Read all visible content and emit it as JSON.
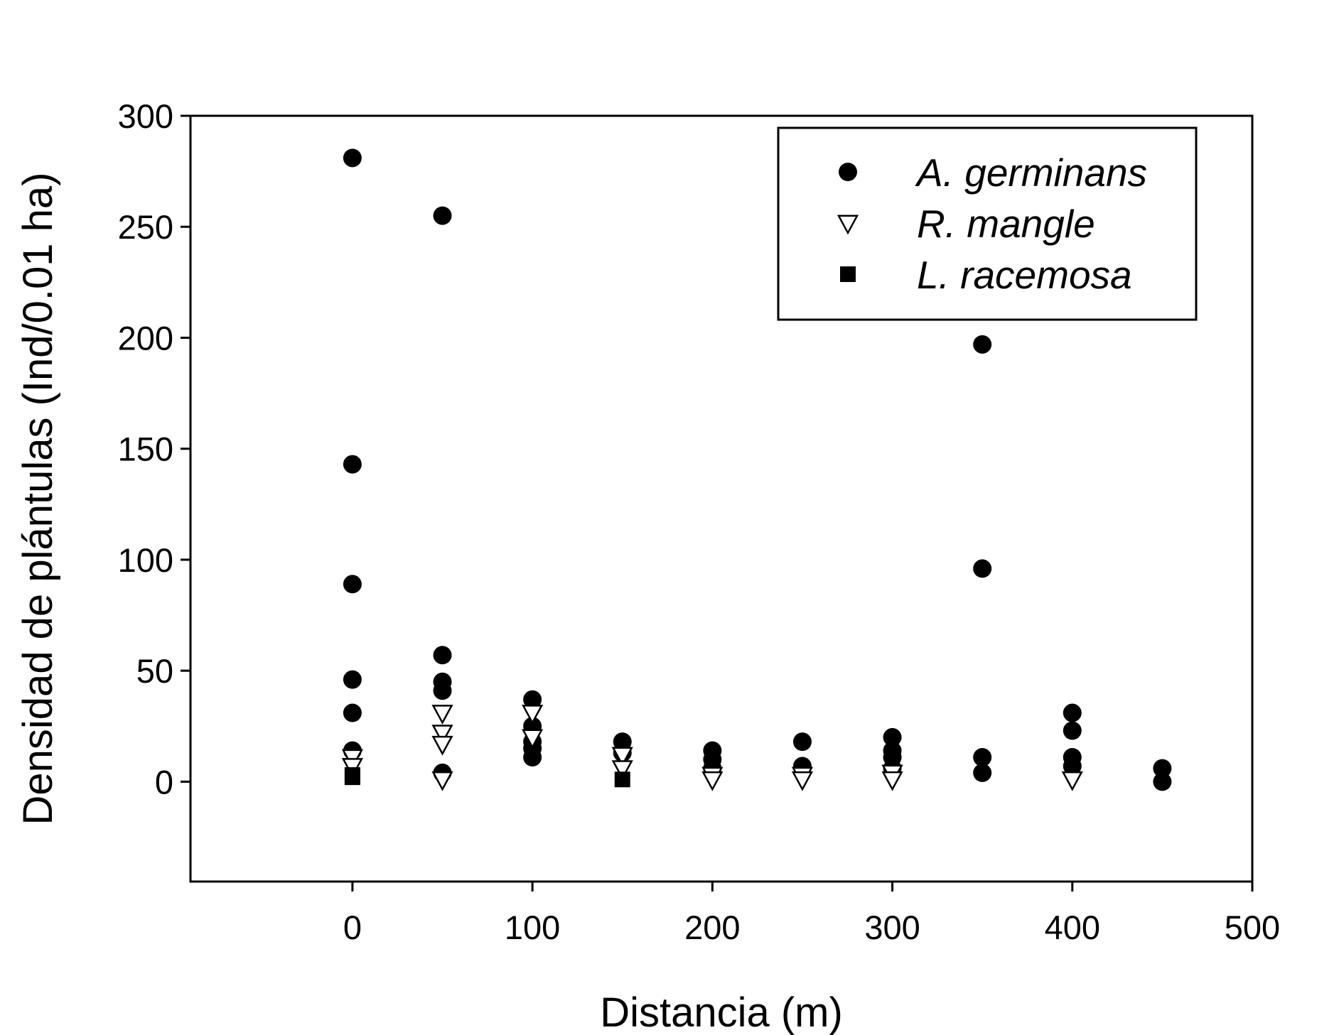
{
  "chart_data": {
    "type": "scatter",
    "xlabel": "Distancia (m)",
    "ylabel": "Densidad de plántulas (Ind/0.01 ha)",
    "xlim": [
      -90,
      500
    ],
    "ylim": [
      -45,
      300
    ],
    "xticks": [
      0,
      100,
      200,
      300,
      400,
      500
    ],
    "yticks": [
      0,
      50,
      100,
      150,
      200,
      250,
      300
    ],
    "grid": false,
    "legend_position": "top-right",
    "series": [
      {
        "name": "A. germinans",
        "marker": "filled-circle",
        "color": "#000000",
        "points": [
          [
            0,
            281
          ],
          [
            0,
            143
          ],
          [
            0,
            89
          ],
          [
            0,
            46
          ],
          [
            0,
            31
          ],
          [
            0,
            14
          ],
          [
            50,
            255
          ],
          [
            50,
            57
          ],
          [
            50,
            45
          ],
          [
            50,
            41
          ],
          [
            50,
            4
          ],
          [
            100,
            37
          ],
          [
            100,
            25
          ],
          [
            100,
            18
          ],
          [
            100,
            15
          ],
          [
            100,
            11
          ],
          [
            150,
            18
          ],
          [
            150,
            13
          ],
          [
            200,
            14
          ],
          [
            200,
            10
          ],
          [
            200,
            6
          ],
          [
            250,
            18
          ],
          [
            250,
            7
          ],
          [
            300,
            20
          ],
          [
            300,
            14
          ],
          [
            300,
            11
          ],
          [
            300,
            6
          ],
          [
            350,
            197
          ],
          [
            350,
            96
          ],
          [
            350,
            11
          ],
          [
            350,
            4
          ],
          [
            400,
            31
          ],
          [
            400,
            23
          ],
          [
            400,
            11
          ],
          [
            400,
            7
          ],
          [
            450,
            6
          ],
          [
            450,
            0
          ]
        ]
      },
      {
        "name": "R. mangle",
        "marker": "open-triangle-down",
        "color": "#000000",
        "points": [
          [
            0,
            11
          ],
          [
            0,
            7
          ],
          [
            50,
            31
          ],
          [
            50,
            22
          ],
          [
            50,
            17
          ],
          [
            50,
            1
          ],
          [
            100,
            31
          ],
          [
            100,
            20
          ],
          [
            150,
            12
          ],
          [
            150,
            6
          ],
          [
            200,
            3
          ],
          [
            200,
            1
          ],
          [
            250,
            3
          ],
          [
            250,
            1
          ],
          [
            300,
            4
          ],
          [
            300,
            1
          ],
          [
            400,
            1
          ]
        ]
      },
      {
        "name": "L. racemosa",
        "marker": "filled-square",
        "color": "#000000",
        "points": [
          [
            0,
            3
          ],
          [
            0,
            2
          ],
          [
            150,
            1
          ]
        ]
      }
    ]
  }
}
